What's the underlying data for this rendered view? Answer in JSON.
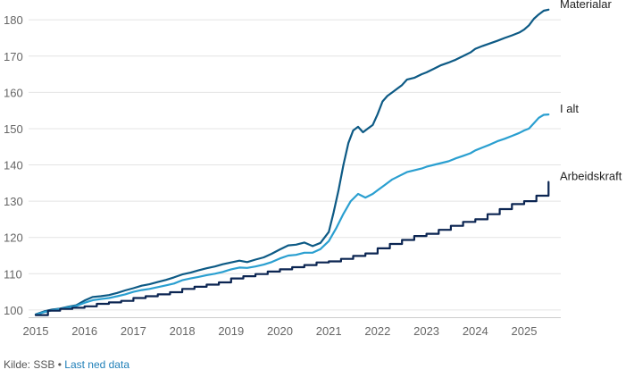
{
  "chart_data": {
    "type": "line",
    "title": "",
    "xlabel": "",
    "ylabel": "",
    "xlim": [
      2015.0,
      2025.75
    ],
    "ylim": [
      98,
      183
    ],
    "x_ticks": [
      2015,
      2016,
      2017,
      2018,
      2019,
      2020,
      2021,
      2022,
      2023,
      2024,
      2025
    ],
    "y_ticks": [
      100,
      110,
      120,
      130,
      140,
      150,
      160,
      170,
      180
    ],
    "grid": "horizontal",
    "legend": "direct labels at line ends (right)",
    "series": [
      {
        "name": "Materialar",
        "color": "#0d5a85",
        "x": [
          2015.0,
          2015.17,
          2015.33,
          2015.5,
          2015.67,
          2015.83,
          2016.0,
          2016.17,
          2016.33,
          2016.5,
          2016.67,
          2016.83,
          2017.0,
          2017.17,
          2017.33,
          2017.5,
          2017.67,
          2017.83,
          2018.0,
          2018.17,
          2018.33,
          2018.5,
          2018.67,
          2018.83,
          2019.0,
          2019.17,
          2019.33,
          2019.5,
          2019.67,
          2019.83,
          2020.0,
          2020.17,
          2020.33,
          2020.5,
          2020.67,
          2020.83,
          2021.0,
          2021.1,
          2021.2,
          2021.3,
          2021.4,
          2021.5,
          2021.6,
          2021.7,
          2021.8,
          2021.9,
          2022.0,
          2022.1,
          2022.2,
          2022.3,
          2022.4,
          2022.5,
          2022.6,
          2022.75,
          2022.9,
          2023.0,
          2023.15,
          2023.3,
          2023.45,
          2023.6,
          2023.75,
          2023.9,
          2024.0,
          2024.15,
          2024.3,
          2024.45,
          2024.6,
          2024.75,
          2024.9,
          2025.0,
          2025.1,
          2025.2,
          2025.3,
          2025.4,
          2025.5
        ],
        "values": [
          98.8,
          99.6,
          100.1,
          100.4,
          100.9,
          101.3,
          102.6,
          103.6,
          103.8,
          104.1,
          104.7,
          105.4,
          106.0,
          106.7,
          107.1,
          107.7,
          108.3,
          109.0,
          109.8,
          110.3,
          110.9,
          111.5,
          112.0,
          112.6,
          113.1,
          113.6,
          113.2,
          113.9,
          114.5,
          115.5,
          116.7,
          117.8,
          118.0,
          118.6,
          117.6,
          118.5,
          121.5,
          127.0,
          133.0,
          140.0,
          146.0,
          149.5,
          150.5,
          149.0,
          150.0,
          151.0,
          154.0,
          157.5,
          159.0,
          160.0,
          161.0,
          162.0,
          163.5,
          164.0,
          165.0,
          165.5,
          166.5,
          167.5,
          168.2,
          169.0,
          170.0,
          171.0,
          172.0,
          172.8,
          173.5,
          174.2,
          175.0,
          175.7,
          176.5,
          177.3,
          178.5,
          180.3,
          181.5,
          182.5,
          182.8
        ]
      },
      {
        "name": "I alt",
        "color": "#2a9fd0",
        "x": [
          2015.0,
          2015.17,
          2015.33,
          2015.5,
          2015.67,
          2015.83,
          2016.0,
          2016.17,
          2016.33,
          2016.5,
          2016.67,
          2016.83,
          2017.0,
          2017.17,
          2017.33,
          2017.5,
          2017.67,
          2017.83,
          2018.0,
          2018.17,
          2018.33,
          2018.5,
          2018.67,
          2018.83,
          2019.0,
          2019.17,
          2019.33,
          2019.5,
          2019.67,
          2019.83,
          2020.0,
          2020.17,
          2020.33,
          2020.5,
          2020.67,
          2020.83,
          2021.0,
          2021.15,
          2021.3,
          2021.45,
          2021.6,
          2021.75,
          2021.9,
          2022.0,
          2022.15,
          2022.3,
          2022.45,
          2022.6,
          2022.75,
          2022.9,
          2023.0,
          2023.15,
          2023.3,
          2023.45,
          2023.6,
          2023.75,
          2023.9,
          2024.0,
          2024.15,
          2024.3,
          2024.45,
          2024.6,
          2024.75,
          2024.9,
          2025.0,
          2025.1,
          2025.2,
          2025.3,
          2025.4,
          2025.5
        ],
        "values": [
          98.7,
          99.4,
          99.9,
          100.3,
          100.7,
          101.1,
          102.0,
          102.7,
          103.0,
          103.3,
          103.8,
          104.3,
          105.0,
          105.5,
          105.8,
          106.3,
          106.8,
          107.3,
          108.2,
          108.7,
          109.1,
          109.6,
          110.0,
          110.5,
          111.2,
          111.7,
          111.6,
          112.0,
          112.5,
          113.2,
          114.2,
          115.0,
          115.2,
          115.8,
          115.8,
          116.8,
          119.0,
          122.5,
          126.5,
          130.0,
          132.0,
          131.0,
          132.0,
          133.0,
          134.5,
          136.0,
          137.0,
          138.0,
          138.5,
          139.0,
          139.5,
          140.0,
          140.5,
          141.0,
          141.8,
          142.5,
          143.2,
          144.0,
          144.8,
          145.6,
          146.5,
          147.2,
          148.0,
          148.8,
          149.5,
          150.0,
          151.5,
          153.0,
          153.8,
          153.9
        ]
      },
      {
        "name": "Arbeidskraft",
        "color": "#0b2552",
        "step": true,
        "x": [
          2015.0,
          2015.25,
          2015.5,
          2015.75,
          2016.0,
          2016.25,
          2016.5,
          2016.75,
          2017.0,
          2017.25,
          2017.5,
          2017.75,
          2018.0,
          2018.25,
          2018.5,
          2018.75,
          2019.0,
          2019.25,
          2019.5,
          2019.75,
          2020.0,
          2020.25,
          2020.5,
          2020.75,
          2021.0,
          2021.25,
          2021.5,
          2021.75,
          2022.0,
          2022.25,
          2022.5,
          2022.75,
          2023.0,
          2023.25,
          2023.5,
          2023.75,
          2024.0,
          2024.25,
          2024.5,
          2024.75,
          2025.0,
          2025.25,
          2025.5
        ],
        "values": [
          98.6,
          99.8,
          100.3,
          100.6,
          101.0,
          101.7,
          102.1,
          102.5,
          103.3,
          103.8,
          104.3,
          104.9,
          105.8,
          106.4,
          107.0,
          107.6,
          108.7,
          109.3,
          109.9,
          110.6,
          111.2,
          111.8,
          112.4,
          113.1,
          113.4,
          114.1,
          114.9,
          115.6,
          117.0,
          118.2,
          119.3,
          120.4,
          121.0,
          122.1,
          123.2,
          124.3,
          125.0,
          126.4,
          127.8,
          129.2,
          130.0,
          131.5,
          135.3
        ]
      }
    ]
  },
  "footer": {
    "source": "Kilde: SSB",
    "separator": "•",
    "download_link": "Last ned data"
  }
}
